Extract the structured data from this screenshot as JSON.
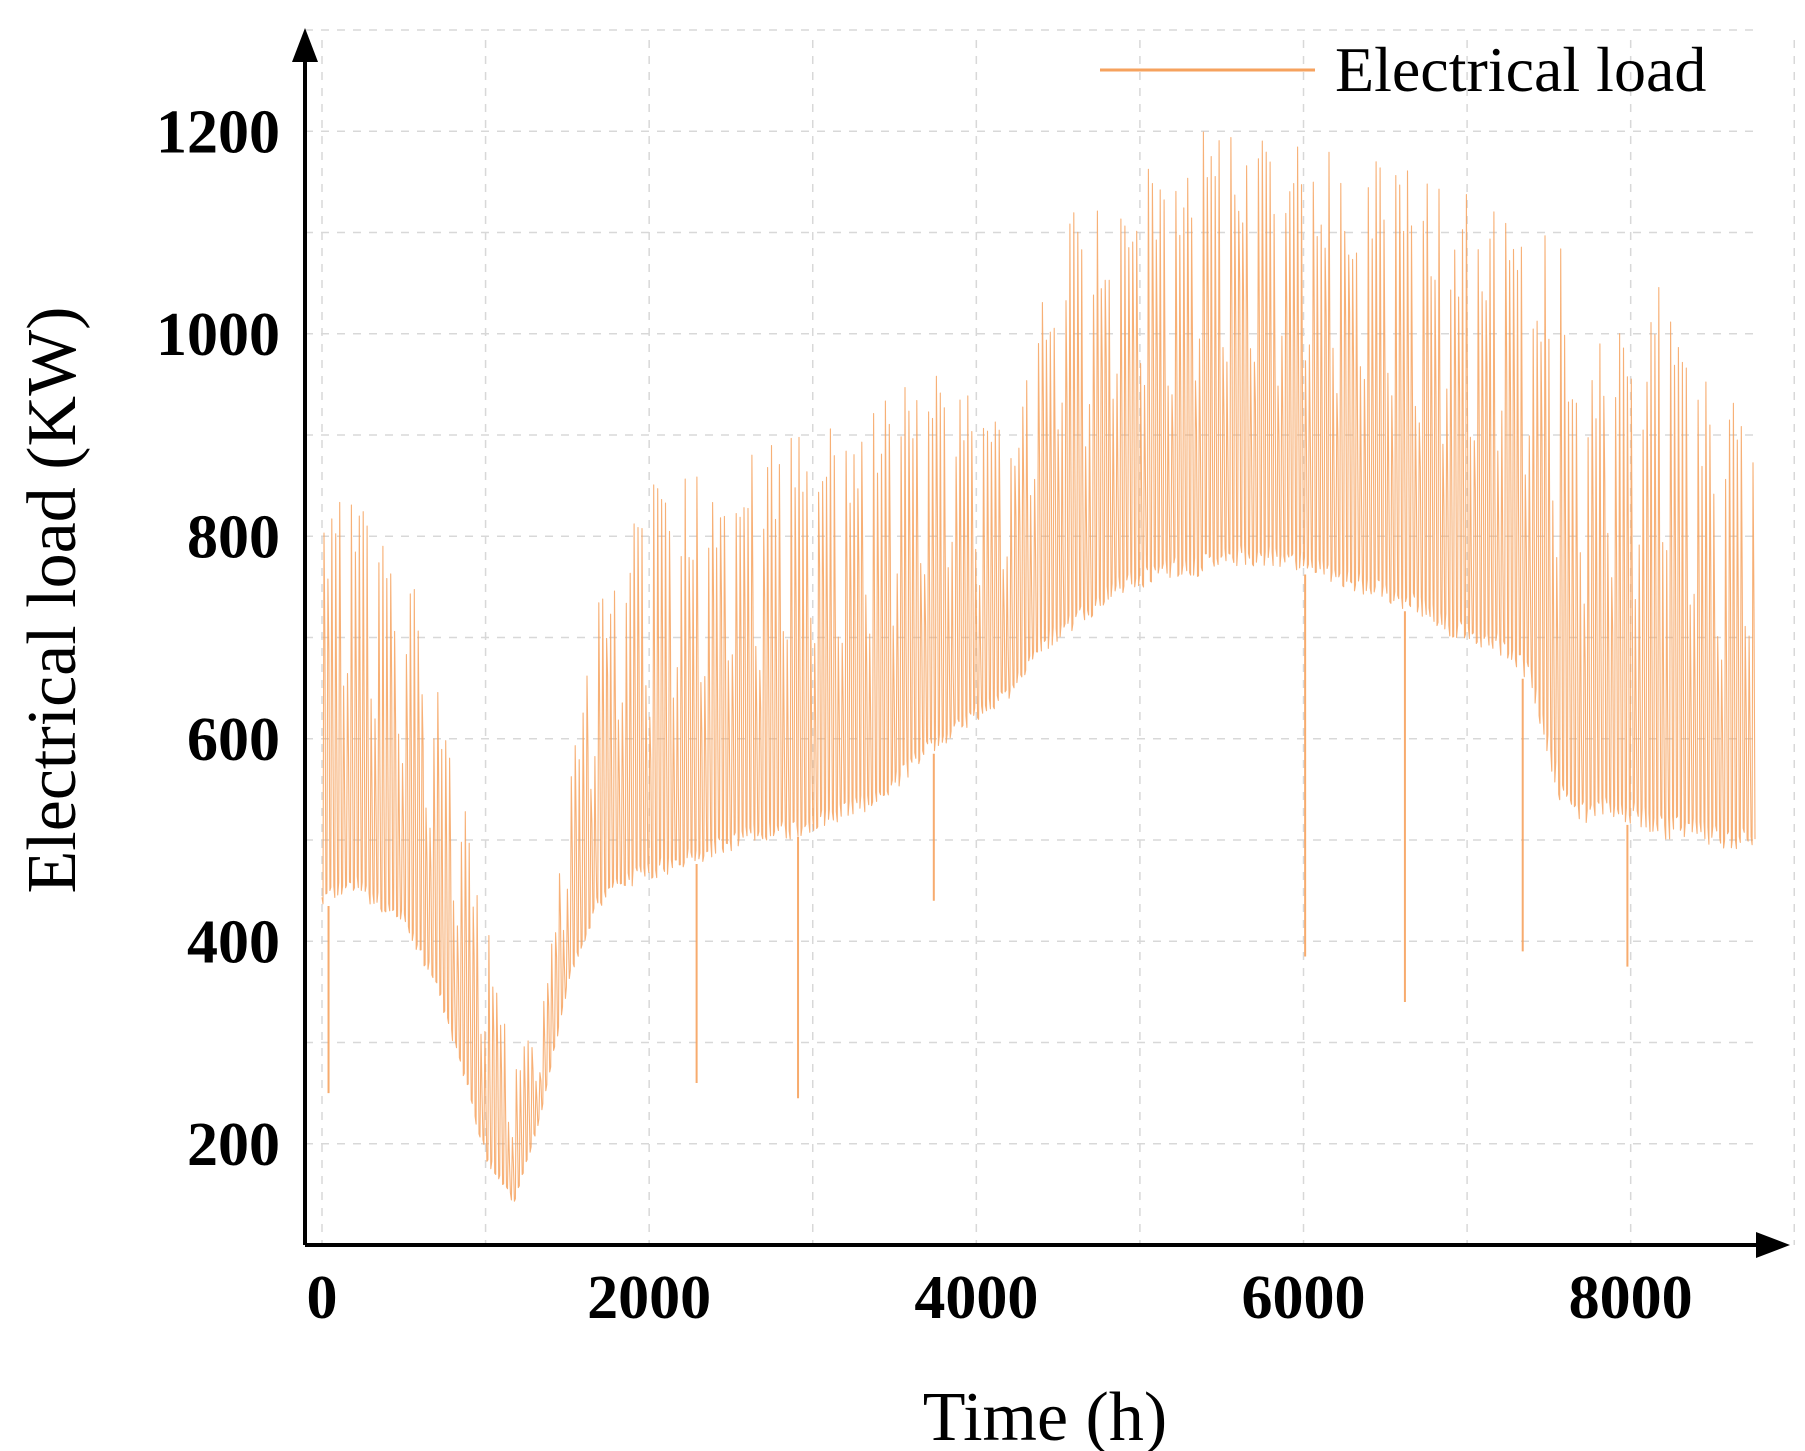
{
  "chart_data": {
    "type": "line",
    "title": "",
    "xlabel": "Time (h)",
    "ylabel": "Electrical load (KW)",
    "xlim": [
      0,
      8760
    ],
    "ylim": [
      100,
      1300
    ],
    "xticks": [
      0,
      2000,
      4000,
      6000,
      8000
    ],
    "yticks": [
      200,
      400,
      600,
      800,
      1000,
      1200
    ],
    "xtick_labels": [
      "0",
      "2000",
      "4000",
      "6000",
      "8000"
    ],
    "ytick_labels": [
      "200",
      "400",
      "600",
      "800",
      "1000",
      "1200"
    ],
    "grid": true,
    "legend_position": "top-right",
    "series": [
      {
        "name": "Electrical load",
        "color": "#f6a25e",
        "x_step": 168,
        "x_start": 0,
        "upper": [
          840,
          850,
          835,
          780,
          690,
          560,
          420,
          280,
          330,
          560,
          760,
          820,
          850,
          870,
          880,
          885,
          890,
          900,
          910,
          920,
          930,
          950,
          970,
          960,
          930,
          900,
          1050,
          1140,
          1130,
          1160,
          1170,
          1180,
          1200,
          1195,
          1230,
          1190,
          1195,
          1185,
          1180,
          1170,
          1160,
          1150,
          1140,
          1130,
          1120,
          1100,
          1000,
          1050,
          1020,
          1060,
          960,
          940,
          920,
          930,
          910,
          900,
          890,
          880
        ],
        "lower": [
          430,
          450,
          430,
          410,
          360,
          280,
          180,
          140,
          230,
          360,
          430,
          450,
          460,
          470,
          480,
          490,
          500,
          500,
          510,
          520,
          530,
          550,
          580,
          600,
          620,
          640,
          680,
          700,
          720,
          740,
          750,
          760,
          760,
          770,
          770,
          770,
          760,
          750,
          740,
          730,
          720,
          700,
          690,
          680,
          650,
          540,
          510,
          520,
          510,
          500,
          500,
          490,
          490,
          480,
          480,
          470,
          470,
          470
        ],
        "dips": [
          [
            40,
            250
          ],
          [
            2290,
            260
          ],
          [
            2910,
            245
          ],
          [
            3740,
            440
          ],
          [
            6010,
            385
          ],
          [
            6620,
            340
          ],
          [
            7340,
            390
          ],
          [
            7980,
            375
          ]
        ]
      }
    ]
  }
}
